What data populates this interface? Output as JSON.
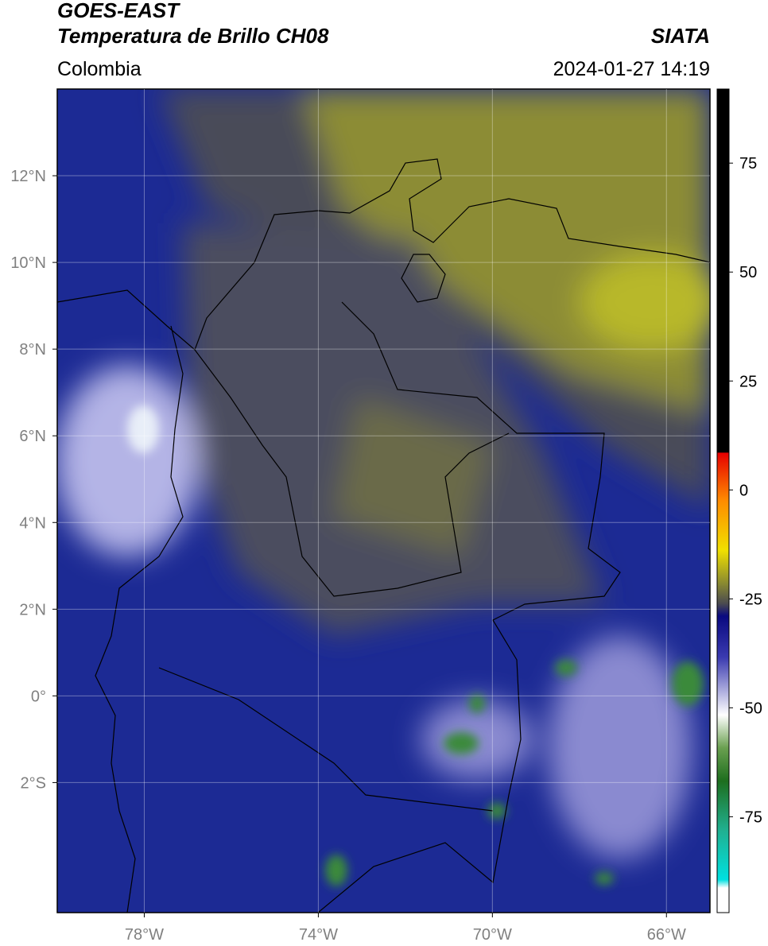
{
  "header": {
    "satellite": "GOES-EAST",
    "product": "Temperatura de Brillo CH08",
    "region": "Colombia",
    "source": "SIATA",
    "timestamp": "2024-01-27 14:19"
  },
  "map": {
    "xlim": [
      -80,
      -65
    ],
    "ylim": [
      -5,
      14
    ],
    "xticks": [
      {
        "value": -78,
        "label": "78°W"
      },
      {
        "value": -74,
        "label": "74°W"
      },
      {
        "value": -70,
        "label": "70°W"
      },
      {
        "value": -66,
        "label": "66°W"
      }
    ],
    "yticks": [
      {
        "value": 12,
        "label": "12°N"
      },
      {
        "value": 10,
        "label": "10°N"
      },
      {
        "value": 8,
        "label": "8°N"
      },
      {
        "value": 6,
        "label": "6°N"
      },
      {
        "value": 4,
        "label": "4°N"
      },
      {
        "value": 2,
        "label": "2°N"
      },
      {
        "value": 0,
        "label": "0°"
      },
      {
        "value": -2,
        "label": "2°S"
      }
    ],
    "grid": true
  },
  "colorbar": {
    "lim": [
      -97,
      92
    ],
    "ticks": [
      75,
      50,
      25,
      0,
      -25,
      -50,
      -75
    ]
  }
}
